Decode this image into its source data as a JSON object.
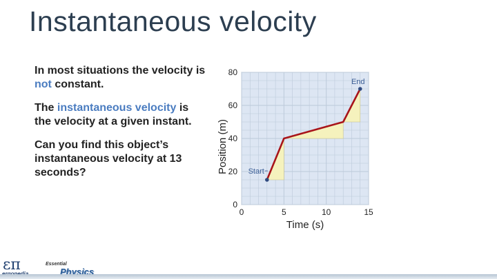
{
  "slide": {
    "title": "Instantaneous velocity",
    "para1_a": "In most situations the velocity is ",
    "para1_not": "not",
    "para1_b": " constant.",
    "para2_a": "The ",
    "para2_hl": "instantaneous velocity",
    "para2_b": " is the velocity at a given instant.",
    "para3": "Can you find this object’s instantaneous velocity at 13 seconds?"
  },
  "footer": {
    "logo_symbol": "επ",
    "logo_word": "ergopedia",
    "essential": "Essential",
    "physics": "Physics"
  },
  "colors": {
    "accent_text": "#4a7cc0",
    "grid_bg": "#dde6f3",
    "grid_line": "#bcc9da",
    "triangle_fill": "#f5f2bd",
    "line": "#a8141a",
    "point": "#2f4a80",
    "label": "#3c5f96"
  },
  "chart_data": {
    "type": "line",
    "title": "",
    "xlabel": "Time (s)",
    "ylabel": "Position (m)",
    "xlim": [
      0,
      15
    ],
    "ylim": [
      0,
      80
    ],
    "xticks": [
      0,
      5,
      10,
      15
    ],
    "yticks": [
      0,
      20,
      40,
      60,
      80
    ],
    "grid": true,
    "series": [
      {
        "x": [
          3,
          5,
          12,
          14
        ],
        "y": [
          15,
          40,
          50,
          70
        ]
      }
    ],
    "annotations": [
      {
        "text": "Start",
        "x": 3,
        "y": 15
      },
      {
        "text": "End",
        "x": 14,
        "y": 70
      }
    ]
  }
}
